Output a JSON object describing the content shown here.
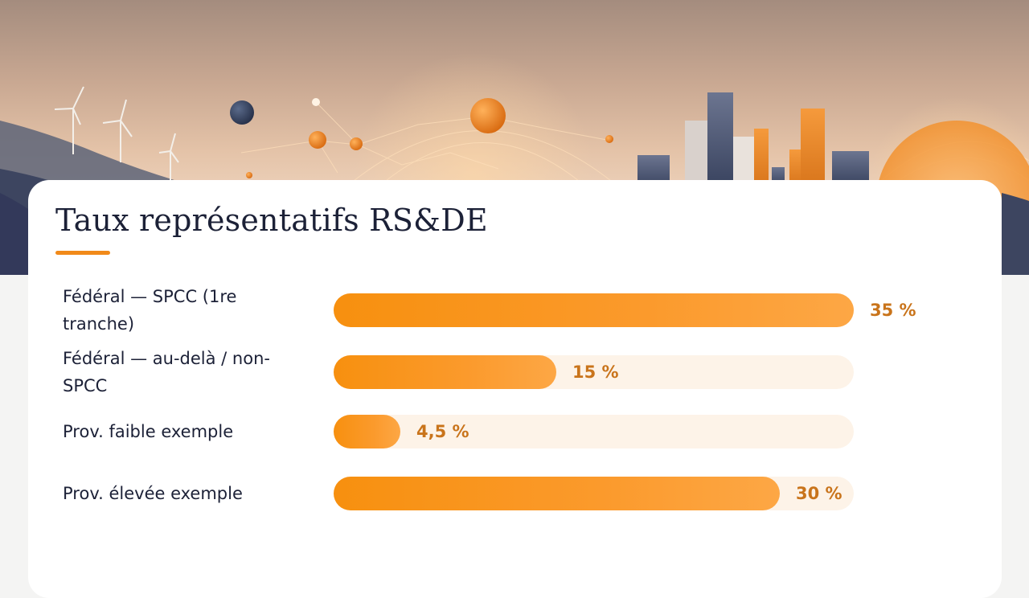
{
  "chart_data": {
    "type": "bar",
    "orientation": "horizontal",
    "title": "Taux représentatifs RS&DE",
    "categories": [
      "Fédéral — SPCC (1re tranche)",
      "Fédéral — au-delà / non-SPCC",
      "Prov. faible exemple",
      "Prov. élevée exemple"
    ],
    "values": [
      35,
      15,
      4.5,
      30
    ],
    "value_labels": [
      "35 %",
      "15 %",
      "4,5 %",
      "30 %"
    ],
    "xlim": [
      0,
      35
    ],
    "grid": false,
    "legend": "none",
    "colors": {
      "bar": "#f7900f",
      "track": "#fdf3e8",
      "value_text": "#c9741b",
      "accent": "#f18a1a",
      "title_text": "#1c2137"
    }
  }
}
